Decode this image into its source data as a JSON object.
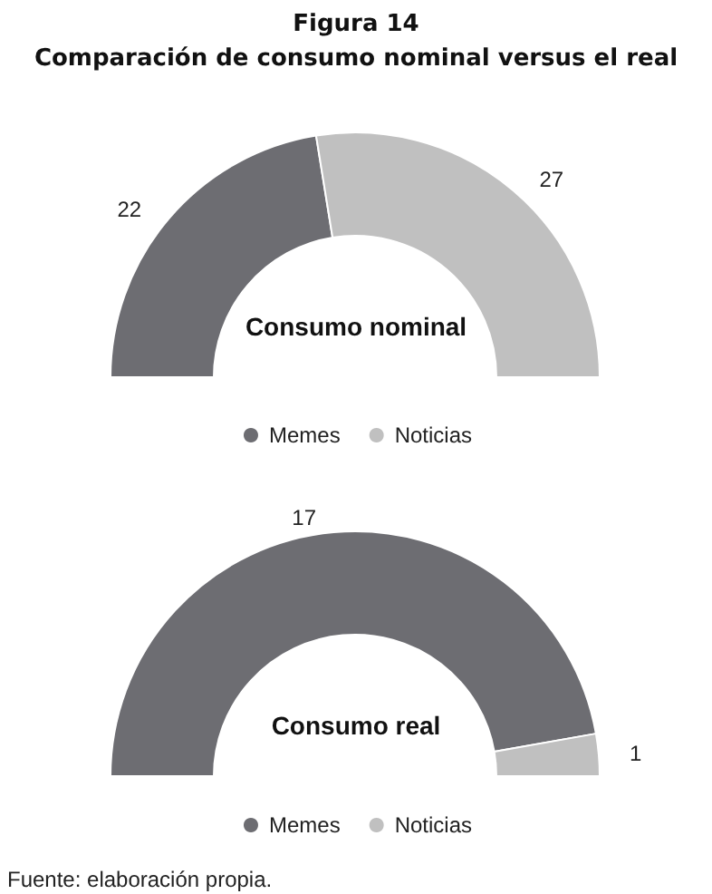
{
  "chart_data": [
    {
      "type": "donut",
      "title": "Figura 14",
      "subtitle": "Comparación de consumo nominal versus el real",
      "categories": [
        "Memes",
        "Noticias"
      ],
      "values": [
        22,
        27
      ],
      "colors": [
        "#6d6d72",
        "#c0c0c0"
      ],
      "data_labels": true,
      "legend": "bottom",
      "annotations": [
        "Consumo nominal"
      ]
    },
    {
      "type": "donut",
      "categories": [
        "Memes",
        "Noticias"
      ],
      "values": [
        17,
        1
      ],
      "colors": [
        "#6d6d72",
        "#c0c0c0"
      ],
      "data_labels": true,
      "legend": "bottom",
      "annotations": [
        "Consumo real",
        "Fuente: elaboración propia."
      ]
    }
  ]
}
